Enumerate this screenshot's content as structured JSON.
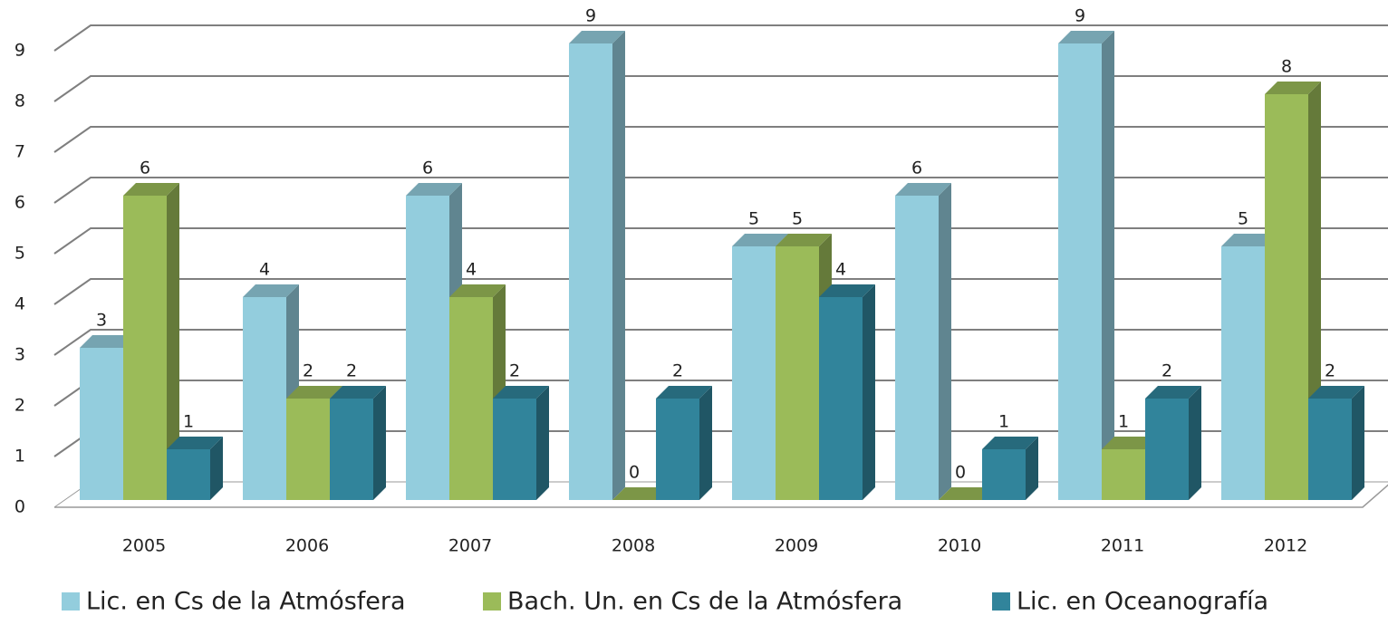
{
  "chart_data": {
    "type": "bar3d",
    "categories": [
      "2005",
      "2006",
      "2007",
      "2008",
      "2009",
      "2010",
      "2011",
      "2012"
    ],
    "series": [
      {
        "name": "Lic. en Cs de la Atmósfera",
        "color": "#93cddd",
        "values": [
          3,
          4,
          6,
          9,
          5,
          6,
          9,
          5
        ]
      },
      {
        "name": "Bach.  Un. en Cs de la Atmósfera",
        "color": "#9bbb59",
        "values": [
          6,
          2,
          4,
          0,
          5,
          0,
          1,
          8
        ]
      },
      {
        "name": "Lic. en Oceanografía",
        "color": "#31849b",
        "values": [
          1,
          2,
          2,
          2,
          4,
          1,
          2,
          2
        ]
      }
    ],
    "ylim": [
      0,
      9
    ],
    "yticks": [
      0,
      1,
      2,
      3,
      4,
      5,
      6,
      7,
      8,
      9
    ],
    "grid": true,
    "legend": "bottom"
  }
}
